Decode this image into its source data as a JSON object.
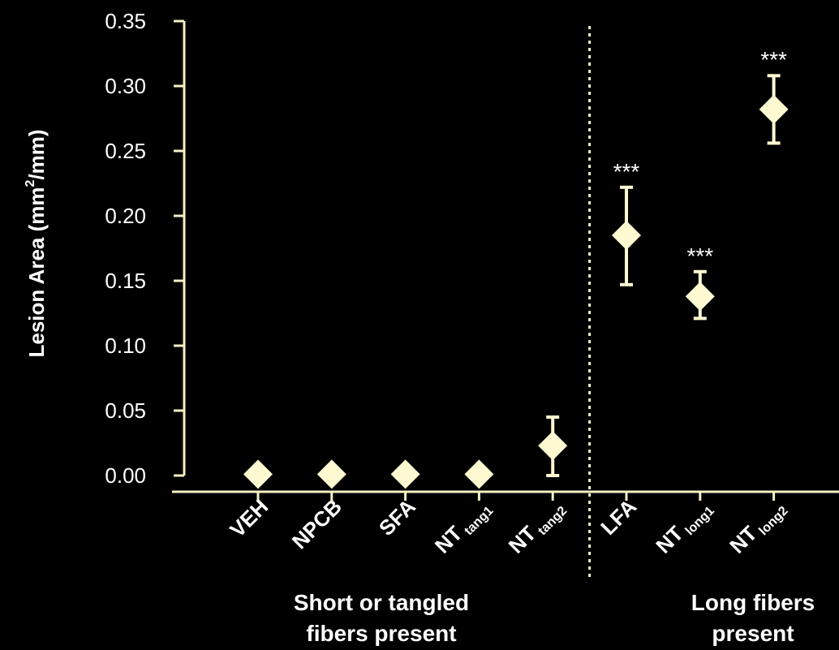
{
  "colors": {
    "background": "#000000",
    "axis": "#f6f0c4",
    "marker": "#fff9d2",
    "text": "#ffffff"
  },
  "chart_data": {
    "type": "scatter",
    "marker": "diamond",
    "ylabel": {
      "main": "Lesion Area (mm",
      "sup": "2",
      "tail": "/mm)"
    },
    "ylim": [
      0,
      0.35
    ],
    "yticks": [
      "0.00",
      "0.05",
      "0.10",
      "0.15",
      "0.20",
      "0.25",
      "0.30",
      "0.35"
    ],
    "categories": [
      {
        "id": "veh",
        "label": "VEH",
        "sub": ""
      },
      {
        "id": "npcb",
        "label": "NPCB",
        "sub": ""
      },
      {
        "id": "sfa",
        "label": "SFA",
        "sub": ""
      },
      {
        "id": "nt-tang1",
        "label": "NT",
        "sub": "tang1"
      },
      {
        "id": "nt-tang2",
        "label": "NT",
        "sub": "tang2"
      },
      {
        "id": "lfa",
        "label": "LFA",
        "sub": ""
      },
      {
        "id": "nt-long1",
        "label": "NT",
        "sub": "long1"
      },
      {
        "id": "nt-long2",
        "label": "NT",
        "sub": "long2"
      }
    ],
    "values": [
      0.001,
      0.001,
      0.001,
      0.001,
      0.023,
      0.185,
      0.138,
      0.282
    ],
    "error_lo": [
      null,
      null,
      null,
      null,
      0.0,
      0.147,
      0.121,
      0.256
    ],
    "error_hi": [
      null,
      null,
      null,
      null,
      0.045,
      0.222,
      0.157,
      0.308
    ],
    "annotations": [
      "",
      "",
      "",
      "",
      "",
      "***",
      "***",
      "***"
    ],
    "groups": [
      {
        "id": "short",
        "line1": "Short or tangled",
        "line2": "fibers present"
      },
      {
        "id": "long",
        "line1": "Long fibers",
        "line2": "present"
      }
    ],
    "divider_after_index": 4,
    "grid": false,
    "legend": "none"
  }
}
